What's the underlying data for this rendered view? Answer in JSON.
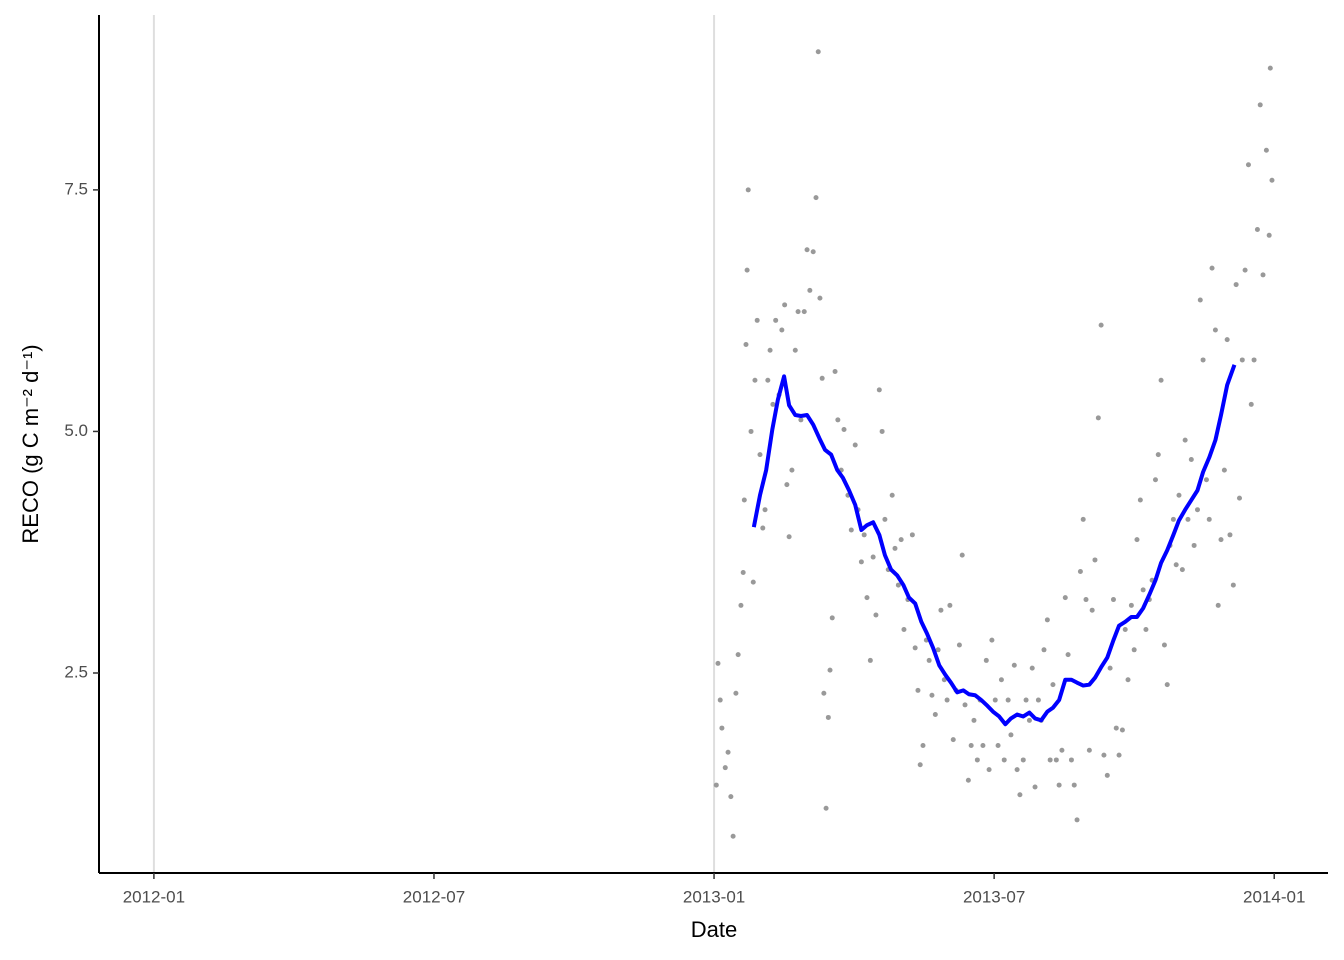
{
  "chart_data": {
    "type": "scatter",
    "x_label": "Date",
    "y_label": "RECO (g C m⁻² d⁻¹)",
    "color": "#999999",
    "xlim": [
      2011.902,
      2014.096
    ],
    "ylim": [
      0.43,
      9.31
    ],
    "xticks": [
      {
        "value": 2012.0,
        "label": "2012-01"
      },
      {
        "value": 2012.5,
        "label": "2012-07"
      },
      {
        "value": 2013.0,
        "label": "2013-01"
      },
      {
        "value": 2013.5,
        "label": "2013-07"
      },
      {
        "value": 2014.0,
        "label": "2014-01"
      }
    ],
    "yticks": [
      2.5,
      {
        "value": 5,
        "label": "5.0"
      },
      7.5
    ],
    "xgrid": [
      2012.0,
      2013.0
    ],
    "x": [
      2013.004,
      2013.007,
      2013.011,
      2013.014,
      2013.02,
      2013.025,
      2013.03,
      2013.034,
      2013.039,
      2013.043,
      2013.048,
      2013.052,
      2013.054,
      2013.057,
      2013.059,
      2013.061,
      2013.066,
      2013.07,
      2013.073,
      2013.077,
      2013.082,
      2013.087,
      2013.091,
      2013.096,
      2013.1,
      2013.105,
      2013.11,
      2013.116,
      2013.121,
      2013.126,
      2013.13,
      2013.134,
      2013.139,
      2013.145,
      2013.15,
      2013.155,
      2013.161,
      2013.166,
      2013.171,
      2013.177,
      2013.182,
      2013.186,
      2013.189,
      2013.193,
      2013.196,
      2013.2,
      2013.204,
      2013.207,
      2013.211,
      2013.216,
      2013.221,
      2013.227,
      2013.232,
      2013.239,
      2013.245,
      2013.252,
      2013.257,
      2013.263,
      2013.268,
      2013.273,
      2013.279,
      2013.284,
      2013.289,
      2013.295,
      2013.3,
      2013.305,
      2013.311,
      2013.318,
      2013.323,
      2013.329,
      2013.334,
      2013.339,
      2013.346,
      2013.354,
      2013.359,
      2013.364,
      2013.368,
      2013.373,
      2013.379,
      2013.384,
      2013.389,
      2013.395,
      2013.4,
      2013.405,
      2013.411,
      2013.416,
      2013.421,
      2013.427,
      2013.432,
      2013.438,
      2013.443,
      2013.448,
      2013.454,
      2013.459,
      2013.464,
      2013.47,
      2013.475,
      2013.48,
      2013.486,
      2013.491,
      2013.496,
      2013.502,
      2013.507,
      2013.513,
      2013.518,
      2013.525,
      2013.53,
      2013.536,
      2013.541,
      2013.546,
      2013.552,
      2013.557,
      2013.563,
      2013.568,
      2013.573,
      2013.579,
      2013.584,
      2013.589,
      2013.595,
      2013.6,
      2013.605,
      2013.611,
      2013.616,
      2013.621,
      2013.627,
      2013.632,
      2013.638,
      2013.643,
      2013.648,
      2013.654,
      2013.659,
      2013.664,
      2013.67,
      2013.675,
      2013.68,
      2013.686,
      2013.691,
      2013.696,
      2013.702,
      2013.707,
      2013.713,
      2013.718,
      2013.723,
      2013.729,
      2013.734,
      2013.739,
      2013.745,
      2013.75,
      2013.755,
      2013.761,
      2013.766,
      2013.771,
      2013.777,
      2013.782,
      2013.788,
      2013.793,
      2013.798,
      2013.804,
      2013.809,
      2013.814,
      2013.82,
      2013.825,
      2013.83,
      2013.836,
      2013.841,
      2013.846,
      2013.852,
      2013.857,
      2013.863,
      2013.868,
      2013.873,
      2013.879,
      2013.884,
      2013.889,
      2013.895,
      2013.9,
      2013.905,
      2013.911,
      2013.916,
      2013.921,
      2013.927,
      2013.932,
      2013.938,
      2013.943,
      2013.948,
      2013.954,
      2013.959,
      2013.964,
      2013.97,
      2013.975,
      2013.98,
      2013.986,
      2013.991,
      2013.993,
      2013.996
    ],
    "values": [
      1.34,
      2.6,
      2.22,
      1.93,
      1.52,
      1.68,
      1.22,
      0.81,
      2.29,
      2.69,
      3.2,
      3.54,
      4.29,
      5.9,
      6.67,
      7.5,
      5.0,
      3.44,
      5.53,
      6.15,
      4.76,
      4.0,
      4.19,
      5.53,
      5.84,
      5.28,
      6.15,
      5.38,
      6.05,
      6.31,
      4.45,
      3.91,
      4.6,
      5.84,
      6.24,
      5.12,
      6.24,
      6.88,
      6.46,
      6.86,
      7.42,
      8.93,
      6.38,
      5.55,
      2.29,
      1.1,
      2.04,
      2.53,
      3.07,
      5.62,
      5.12,
      4.6,
      5.02,
      4.34,
      3.98,
      4.86,
      4.19,
      3.65,
      3.93,
      3.28,
      2.63,
      3.7,
      3.1,
      5.43,
      5.0,
      4.09,
      3.57,
      4.34,
      3.79,
      3.41,
      3.88,
      2.95,
      3.26,
      3.93,
      2.76,
      2.32,
      1.55,
      1.75,
      2.84,
      2.63,
      2.27,
      2.07,
      2.74,
      3.15,
      2.43,
      2.22,
      3.2,
      1.81,
      2.32,
      2.79,
      3.72,
      2.17,
      1.39,
      1.75,
      2.01,
      1.6,
      2.22,
      1.75,
      2.63,
      1.5,
      2.84,
      2.22,
      1.75,
      2.43,
      1.6,
      2.22,
      1.86,
      2.58,
      1.5,
      1.24,
      1.6,
      2.22,
      2.01,
      2.55,
      1.32,
      2.22,
      2.01,
      2.74,
      3.05,
      1.6,
      2.38,
      1.6,
      1.34,
      1.7,
      3.28,
      2.69,
      1.6,
      1.34,
      0.98,
      3.55,
      4.09,
      3.26,
      1.7,
      3.15,
      3.67,
      5.14,
      6.1,
      1.65,
      1.44,
      2.55,
      3.26,
      1.93,
      1.65,
      1.91,
      2.95,
      2.43,
      3.2,
      2.74,
      3.88,
      4.29,
      3.36,
      2.95,
      3.26,
      3.46,
      4.5,
      4.76,
      5.53,
      2.79,
      2.38,
      3.82,
      4.09,
      3.62,
      4.34,
      3.57,
      4.91,
      4.09,
      4.71,
      3.82,
      4.19,
      6.36,
      5.74,
      4.5,
      4.09,
      6.69,
      6.05,
      3.2,
      3.88,
      4.6,
      5.95,
      3.93,
      3.41,
      6.52,
      4.31,
      5.74,
      6.67,
      7.76,
      5.28,
      5.74,
      7.09,
      8.38,
      6.62,
      7.91,
      7.03,
      8.76,
      7.6
    ],
    "series": [
      {
        "type": "line",
        "color": "#0000ff",
        "x": [
          2013.071,
          2013.082,
          2013.093,
          2013.104,
          2013.114,
          2013.125,
          2013.134,
          2013.145,
          2013.155,
          2013.166,
          2013.177,
          2013.188,
          2013.198,
          2013.209,
          2013.22,
          2013.23,
          2013.241,
          2013.252,
          2013.263,
          2013.273,
          2013.284,
          2013.295,
          2013.305,
          2013.316,
          2013.327,
          2013.338,
          2013.348,
          2013.359,
          2013.37,
          2013.38,
          2013.391,
          2013.402,
          2013.413,
          2013.423,
          2013.434,
          2013.445,
          2013.455,
          2013.466,
          2013.477,
          2013.488,
          2013.498,
          2013.509,
          2013.52,
          2013.53,
          2013.541,
          2013.552,
          2013.563,
          2013.573,
          2013.584,
          2013.595,
          2013.605,
          2013.616,
          2013.627,
          2013.638,
          2013.648,
          2013.659,
          2013.67,
          2013.68,
          2013.691,
          2013.702,
          2013.713,
          2013.723,
          2013.734,
          2013.745,
          2013.755,
          2013.766,
          2013.777,
          2013.788,
          2013.798,
          2013.809,
          2013.82,
          2013.83,
          2013.841,
          2013.852,
          2013.863,
          2013.873,
          2013.884,
          2013.895,
          2013.905,
          2013.916,
          2013.929
        ],
        "values": [
          4.01,
          4.34,
          4.6,
          5.02,
          5.33,
          5.57,
          5.27,
          5.17,
          5.16,
          5.17,
          5.07,
          4.93,
          4.81,
          4.76,
          4.6,
          4.52,
          4.39,
          4.24,
          3.98,
          4.03,
          4.06,
          3.93,
          3.72,
          3.57,
          3.51,
          3.41,
          3.28,
          3.22,
          3.03,
          2.91,
          2.76,
          2.58,
          2.48,
          2.4,
          2.3,
          2.32,
          2.28,
          2.27,
          2.22,
          2.16,
          2.1,
          2.05,
          1.97,
          2.03,
          2.07,
          2.05,
          2.09,
          2.03,
          2.01,
          2.1,
          2.14,
          2.22,
          2.43,
          2.43,
          2.4,
          2.37,
          2.38,
          2.45,
          2.56,
          2.66,
          2.84,
          2.99,
          3.03,
          3.08,
          3.08,
          3.17,
          3.31,
          3.46,
          3.64,
          3.77,
          3.93,
          4.08,
          4.19,
          4.29,
          4.39,
          4.58,
          4.73,
          4.91,
          5.17,
          5.48,
          5.69
        ]
      }
    ]
  }
}
